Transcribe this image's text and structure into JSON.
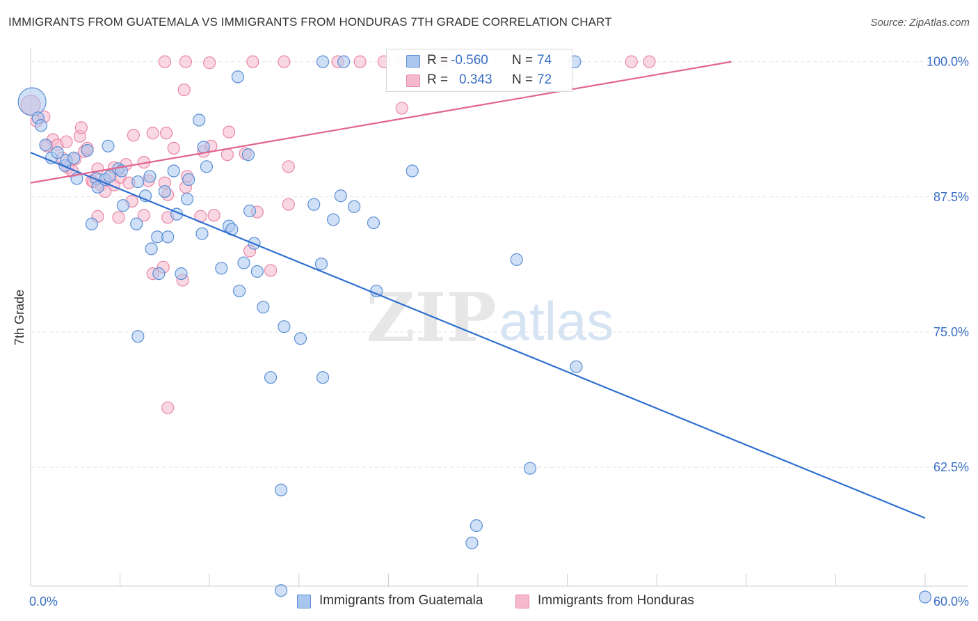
{
  "title": "IMMIGRANTS FROM GUATEMALA VS IMMIGRANTS FROM HONDURAS 7TH GRADE CORRELATION CHART",
  "source": "Source: ZipAtlas.com",
  "watermark": {
    "zip": "ZIP",
    "atlas": "atlas"
  },
  "colors": {
    "blue_fill": "#a9c6ee",
    "blue_stroke": "#5b8fd6",
    "blue_line": "#2f6fd0",
    "pink_fill": "#f5b8cc",
    "pink_stroke": "#e987a6",
    "pink_line": "#e2638e",
    "axis_label": "#3a6fc4",
    "grid": "#e4e4e4"
  },
  "legend": {
    "rows": [
      {
        "r_label": "R =",
        "r_value": "-0.560",
        "n_label": "N =",
        "n_value": "74",
        "color": "#a9c6ee",
        "stroke": "#5b8fd6"
      },
      {
        "r_label": "R =",
        "r_value": "0.343",
        "n_label": "N =",
        "n_value": "72",
        "color": "#f5b8cc",
        "stroke": "#e987a6"
      }
    ]
  },
  "bottom_legend": {
    "items": [
      {
        "label": "Immigrants from Guatemala",
        "color": "#a9c6ee",
        "stroke": "#5b8fd6"
      },
      {
        "label": "Immigrants from Honduras",
        "color": "#f5b8cc",
        "stroke": "#e987a6"
      }
    ]
  },
  "chart_data": {
    "type": "scatter",
    "title": "IMMIGRANTS FROM GUATEMALA VS IMMIGRANTS FROM HONDURAS 7TH GRADE CORRELATION CHART",
    "xlabel": "",
    "ylabel": "7th Grade",
    "xlim": [
      0,
      60
    ],
    "ylim": [
      51.5,
      101.2
    ],
    "x_tick_labels": [
      "0.0%",
      "60.0%"
    ],
    "y_ticks": [
      100,
      87.5,
      75,
      62.5
    ],
    "y_tick_labels": [
      "100.0%",
      "87.5%",
      "75.0%",
      "62.5%"
    ],
    "grid": true,
    "legend_position": "top-center",
    "series": [
      {
        "name": "Immigrants from Guatemala",
        "points": [
          [
            0.1,
            96.3
          ],
          [
            0.5,
            94.8
          ],
          [
            0.7,
            94.1
          ],
          [
            1.0,
            92.3
          ],
          [
            1.4,
            91.1
          ],
          [
            1.8,
            91.6
          ],
          [
            2.3,
            90.4
          ],
          [
            2.4,
            90.9
          ],
          [
            2.9,
            91.1
          ],
          [
            3.8,
            91.8
          ],
          [
            3.1,
            89.2
          ],
          [
            4.4,
            89.2
          ],
          [
            4.5,
            88.4
          ],
          [
            5.0,
            89.1
          ],
          [
            5.3,
            89.4
          ],
          [
            5.9,
            90.1
          ],
          [
            6.1,
            89.9
          ],
          [
            5.2,
            92.2
          ],
          [
            7.2,
            88.9
          ],
          [
            7.7,
            87.6
          ],
          [
            8.0,
            89.4
          ],
          [
            9.6,
            89.9
          ],
          [
            10.6,
            89.1
          ],
          [
            9.0,
            88.0
          ],
          [
            6.2,
            86.7
          ],
          [
            4.1,
            85.0
          ],
          [
            7.1,
            85.0
          ],
          [
            8.5,
            83.8
          ],
          [
            9.2,
            83.8
          ],
          [
            8.1,
            82.7
          ],
          [
            9.8,
            85.9
          ],
          [
            10.5,
            87.3
          ],
          [
            11.5,
            84.1
          ],
          [
            11.3,
            94.6
          ],
          [
            11.6,
            92.1
          ],
          [
            11.8,
            90.3
          ],
          [
            13.3,
            84.8
          ],
          [
            13.5,
            84.5
          ],
          [
            14.7,
            86.2
          ],
          [
            15.0,
            83.2
          ],
          [
            14.6,
            91.4
          ],
          [
            12.8,
            80.9
          ],
          [
            14.0,
            78.8
          ],
          [
            14.3,
            81.4
          ],
          [
            15.2,
            80.6
          ],
          [
            15.6,
            77.3
          ],
          [
            17.0,
            75.5
          ],
          [
            18.1,
            74.4
          ],
          [
            19.5,
            81.3
          ],
          [
            19.0,
            86.8
          ],
          [
            20.3,
            85.4
          ],
          [
            20.8,
            87.6
          ],
          [
            21.7,
            86.6
          ],
          [
            23.0,
            85.1
          ],
          [
            23.2,
            78.8
          ],
          [
            25.6,
            89.9
          ],
          [
            32.6,
            81.7
          ],
          [
            36.6,
            71.8
          ],
          [
            7.2,
            74.6
          ],
          [
            10.1,
            80.4
          ],
          [
            8.6,
            80.4
          ],
          [
            16.1,
            70.8
          ],
          [
            19.6,
            70.8
          ],
          [
            16.8,
            60.4
          ],
          [
            33.5,
            62.4
          ],
          [
            29.9,
            57.1
          ],
          [
            29.6,
            55.5
          ],
          [
            16.8,
            51.1
          ],
          [
            60.0,
            50.5
          ],
          [
            19.6,
            100.0
          ],
          [
            21.0,
            100.0
          ],
          [
            30.3,
            100.0
          ],
          [
            36.5,
            100.0
          ],
          [
            13.9,
            98.6
          ]
        ]
      },
      {
        "name": "Immigrants from Honduras",
        "points": [
          [
            0.0,
            96.0
          ],
          [
            0.4,
            94.5
          ],
          [
            0.9,
            94.9
          ],
          [
            1.1,
            92.2
          ],
          [
            1.5,
            92.8
          ],
          [
            1.8,
            92.3
          ],
          [
            2.1,
            91.1
          ],
          [
            2.5,
            90.2
          ],
          [
            3.0,
            91.0
          ],
          [
            3.3,
            93.1
          ],
          [
            3.6,
            91.7
          ],
          [
            3.8,
            92.0
          ],
          [
            2.8,
            89.9
          ],
          [
            4.1,
            89.0
          ],
          [
            4.5,
            90.1
          ],
          [
            4.7,
            88.6
          ],
          [
            5.0,
            88.0
          ],
          [
            5.6,
            88.6
          ],
          [
            5.4,
            89.6
          ],
          [
            6.0,
            89.3
          ],
          [
            6.4,
            90.5
          ],
          [
            6.6,
            88.8
          ],
          [
            5.9,
            85.6
          ],
          [
            6.8,
            87.1
          ],
          [
            7.6,
            90.7
          ],
          [
            7.9,
            89.0
          ],
          [
            6.9,
            93.2
          ],
          [
            8.2,
            93.4
          ],
          [
            4.5,
            85.7
          ],
          [
            7.6,
            85.8
          ],
          [
            9.0,
            88.8
          ],
          [
            8.2,
            80.4
          ],
          [
            8.9,
            81.0
          ],
          [
            9.2,
            85.6
          ],
          [
            9.2,
            87.7
          ],
          [
            9.1,
            93.4
          ],
          [
            9.6,
            92.0
          ],
          [
            10.2,
            79.8
          ],
          [
            10.5,
            89.4
          ],
          [
            11.4,
            85.7
          ],
          [
            11.6,
            91.7
          ],
          [
            12.1,
            92.2
          ],
          [
            13.2,
            91.4
          ],
          [
            13.3,
            93.5
          ],
          [
            14.4,
            91.5
          ],
          [
            15.2,
            86.1
          ],
          [
            14.7,
            82.5
          ],
          [
            16.1,
            80.7
          ],
          [
            17.3,
            90.3
          ],
          [
            17.3,
            86.8
          ],
          [
            9.2,
            68.0
          ],
          [
            10.3,
            97.4
          ],
          [
            20.6,
            100.0
          ],
          [
            22.1,
            100.0
          ],
          [
            23.7,
            100.0
          ],
          [
            25.0,
            100.0
          ],
          [
            26.1,
            100.0
          ],
          [
            9.0,
            100.0
          ],
          [
            10.4,
            100.0
          ],
          [
            12.0,
            99.9
          ],
          [
            14.9,
            100.0
          ],
          [
            17.0,
            100.0
          ],
          [
            27.6,
            100.0
          ],
          [
            40.3,
            100.0
          ],
          [
            41.5,
            100.0
          ],
          [
            24.9,
            95.7
          ],
          [
            5.6,
            90.2
          ],
          [
            3.4,
            93.9
          ],
          [
            10.4,
            88.4
          ],
          [
            4.2,
            88.9
          ],
          [
            2.4,
            92.6
          ],
          [
            12.3,
            85.8
          ]
        ]
      }
    ],
    "trend_lines": [
      {
        "name": "Immigrants from Guatemala",
        "x": [
          0,
          60
        ],
        "y": [
          91.6,
          57.8
        ]
      },
      {
        "name": "Immigrants from Honduras",
        "x": [
          0,
          47
        ],
        "y": [
          88.8,
          100.0
        ]
      }
    ]
  }
}
